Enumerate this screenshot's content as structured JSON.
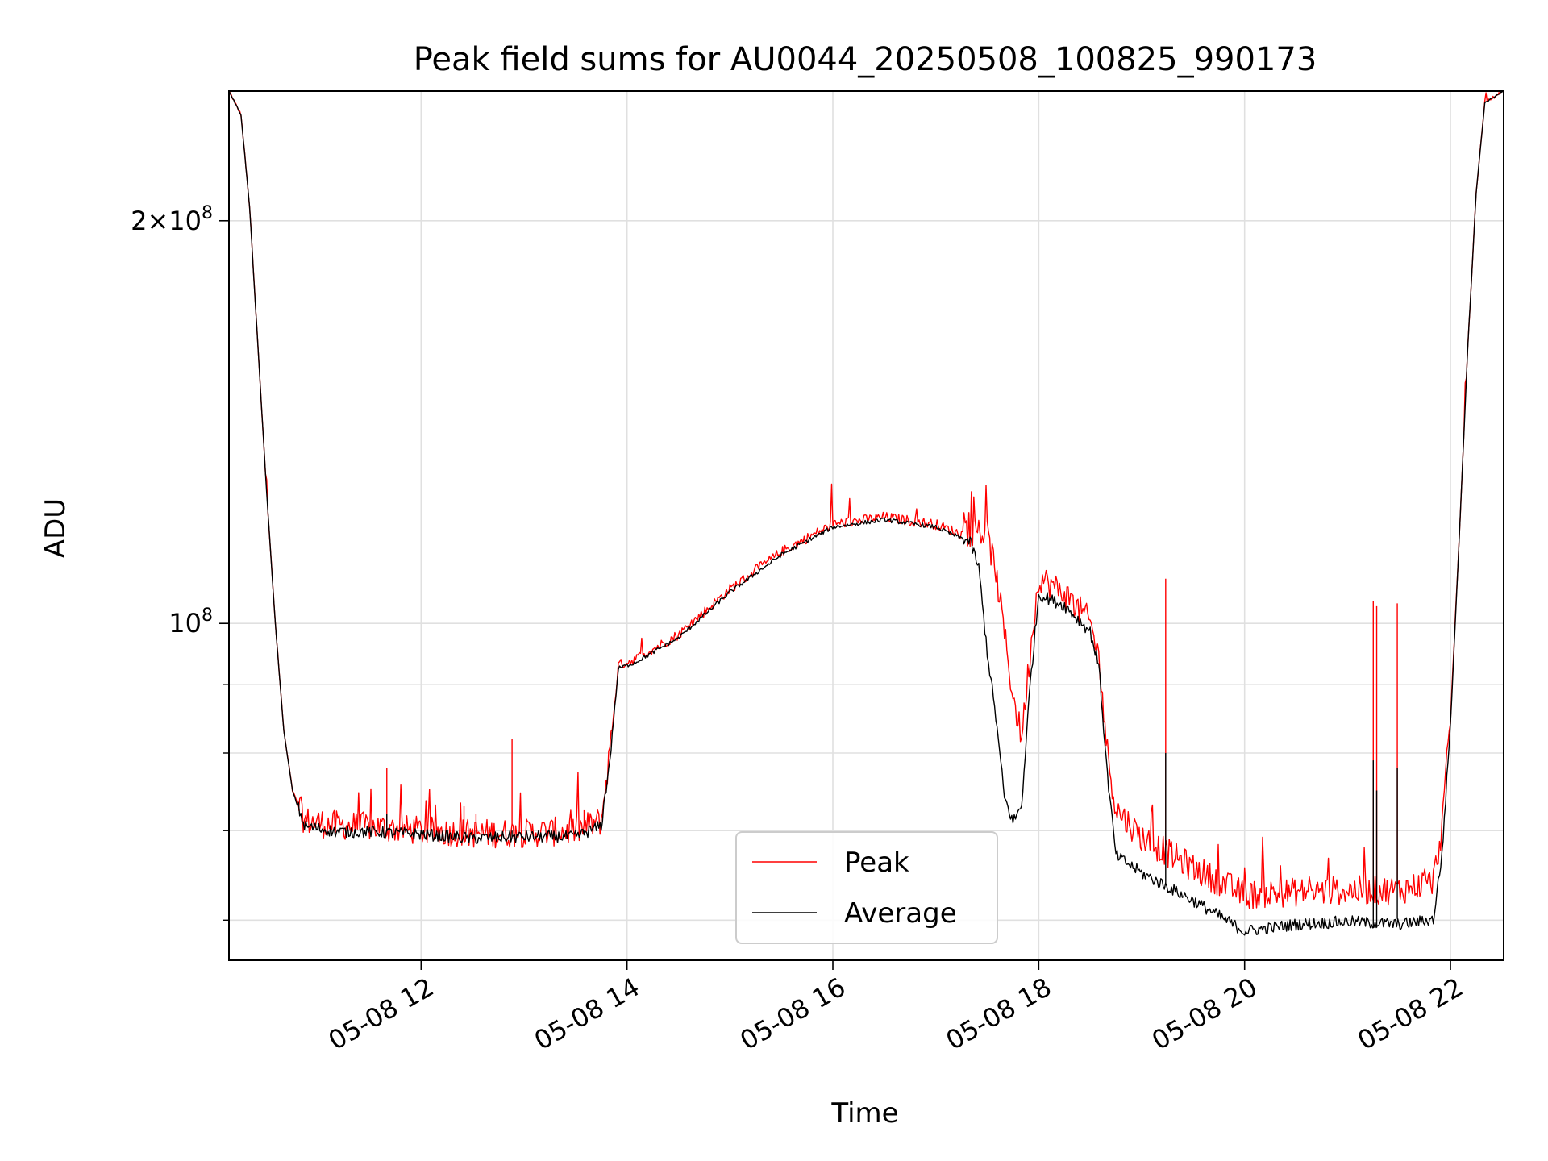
{
  "chart_data": {
    "type": "line",
    "title": "Peak field sums for AU0044_20250508_100825_990173",
    "xlabel": "Time",
    "ylabel": "ADU",
    "y_scale": "log",
    "grid": true,
    "legend_position": "lower center",
    "xlim": [
      "2025-05-08 10:08",
      "2025-05-08 22:31"
    ],
    "ylim": [
      56000000,
      250000000
    ],
    "x_ticks": [
      {
        "value": "2025-05-08 12:00",
        "label": "05-08 12"
      },
      {
        "value": "2025-05-08 14:00",
        "label": "05-08 14"
      },
      {
        "value": "2025-05-08 16:00",
        "label": "05-08 16"
      },
      {
        "value": "2025-05-08 18:00",
        "label": "05-08 18"
      },
      {
        "value": "2025-05-08 20:00",
        "label": "05-08 20"
      },
      {
        "value": "2025-05-08 22:00",
        "label": "05-08 22"
      }
    ],
    "y_major_ticks": [
      {
        "value": 100000000,
        "mantissa": "",
        "exponent": "8"
      },
      {
        "value": 200000000,
        "mantissa": "2",
        "exponent": "8"
      }
    ],
    "y_minor_ticks": [
      60000000,
      70000000,
      80000000,
      90000000
    ],
    "series": [
      {
        "name": "Peak",
        "color": "#ff0000",
        "noise": "high",
        "points": [
          [
            "2025-05-08 10:08",
            250000000
          ],
          [
            "2025-05-08 10:15",
            240000000
          ],
          [
            "2025-05-08 10:20",
            205000000
          ],
          [
            "2025-05-08 10:25",
            160000000
          ],
          [
            "2025-05-08 10:30",
            125000000
          ],
          [
            "2025-05-08 10:35",
            100000000
          ],
          [
            "2025-05-08 10:40",
            83000000
          ],
          [
            "2025-05-08 10:45",
            75000000
          ],
          [
            "2025-05-08 10:52",
            71000000
          ],
          [
            "2025-05-08 11:10",
            70500000
          ],
          [
            "2025-05-08 11:30",
            70300000
          ],
          [
            "2025-05-08 12:00",
            69800000
          ],
          [
            "2025-05-08 12:30",
            69500000
          ],
          [
            "2025-05-08 13:00",
            69500000
          ],
          [
            "2025-05-08 13:30",
            69800000
          ],
          [
            "2025-05-08 13:45",
            71000000
          ],
          [
            "2025-05-08 13:50",
            80000000
          ],
          [
            "2025-05-08 13:55",
            93000000
          ],
          [
            "2025-05-08 14:05",
            94000000
          ],
          [
            "2025-05-08 14:30",
            98000000
          ],
          [
            "2025-05-08 15:00",
            106000000
          ],
          [
            "2025-05-08 15:30",
            113000000
          ],
          [
            "2025-05-08 16:00",
            118500000
          ],
          [
            "2025-05-08 16:30",
            120000000
          ],
          [
            "2025-05-08 17:00",
            118500000
          ],
          [
            "2025-05-08 17:15",
            116500000
          ],
          [
            "2025-05-08 17:25",
            117000000
          ],
          [
            "2025-05-08 17:30",
            116000000
          ],
          [
            "2025-05-08 17:35",
            109000000
          ],
          [
            "2025-05-08 17:40",
            98000000
          ],
          [
            "2025-05-08 17:45",
            88000000
          ],
          [
            "2025-05-08 17:50",
            82000000
          ],
          [
            "2025-05-08 17:55",
            95000000
          ],
          [
            "2025-05-08 18:00",
            108000000
          ],
          [
            "2025-05-08 18:15",
            105000000
          ],
          [
            "2025-05-08 18:30",
            100000000
          ],
          [
            "2025-05-08 18:35",
            94000000
          ],
          [
            "2025-05-08 18:40",
            80000000
          ],
          [
            "2025-05-08 18:45",
            72500000
          ],
          [
            "2025-05-08 19:00",
            69000000
          ],
          [
            "2025-05-08 19:30",
            65500000
          ],
          [
            "2025-05-08 20:00",
            62500000
          ],
          [
            "2025-05-08 20:30",
            62800000
          ],
          [
            "2025-05-08 21:00",
            63000000
          ],
          [
            "2025-05-08 21:30",
            63000000
          ],
          [
            "2025-05-08 21:50",
            64000000
          ],
          [
            "2025-05-08 21:55",
            70000000
          ],
          [
            "2025-05-08 22:00",
            85000000
          ],
          [
            "2025-05-08 22:05",
            115000000
          ],
          [
            "2025-05-08 22:10",
            160000000
          ],
          [
            "2025-05-08 22:15",
            210000000
          ],
          [
            "2025-05-08 22:20",
            245000000
          ],
          [
            "2025-05-08 22:31",
            250000000
          ]
        ]
      },
      {
        "name": "Average",
        "color": "#000000",
        "noise": "low",
        "points": [
          [
            "2025-05-08 10:08",
            250000000
          ],
          [
            "2025-05-08 10:15",
            240000000
          ],
          [
            "2025-05-08 10:20",
            205000000
          ],
          [
            "2025-05-08 10:25",
            160000000
          ],
          [
            "2025-05-08 10:30",
            125000000
          ],
          [
            "2025-05-08 10:35",
            100000000
          ],
          [
            "2025-05-08 10:40",
            83000000
          ],
          [
            "2025-05-08 10:45",
            75000000
          ],
          [
            "2025-05-08 10:52",
            70500000
          ],
          [
            "2025-05-08 11:10",
            69800000
          ],
          [
            "2025-05-08 11:30",
            69800000
          ],
          [
            "2025-05-08 12:00",
            69500000
          ],
          [
            "2025-05-08 12:30",
            69000000
          ],
          [
            "2025-05-08 13:00",
            69200000
          ],
          [
            "2025-05-08 13:30",
            69200000
          ],
          [
            "2025-05-08 13:45",
            70500000
          ],
          [
            "2025-05-08 13:50",
            79000000
          ],
          [
            "2025-05-08 13:55",
            92500000
          ],
          [
            "2025-05-08 14:05",
            93500000
          ],
          [
            "2025-05-08 14:30",
            97500000
          ],
          [
            "2025-05-08 15:00",
            105500000
          ],
          [
            "2025-05-08 15:30",
            112500000
          ],
          [
            "2025-05-08 16:00",
            118000000
          ],
          [
            "2025-05-08 16:30",
            119500000
          ],
          [
            "2025-05-08 17:00",
            118000000
          ],
          [
            "2025-05-08 17:20",
            115000000
          ],
          [
            "2025-05-08 17:25",
            110000000
          ],
          [
            "2025-05-08 17:30",
            95000000
          ],
          [
            "2025-05-08 17:35",
            85000000
          ],
          [
            "2025-05-08 17:40",
            74000000
          ],
          [
            "2025-05-08 17:45",
            71000000
          ],
          [
            "2025-05-08 17:50",
            73000000
          ],
          [
            "2025-05-08 17:55",
            90000000
          ],
          [
            "2025-05-08 18:00",
            105000000
          ],
          [
            "2025-05-08 18:15",
            103000000
          ],
          [
            "2025-05-08 18:30",
            98500000
          ],
          [
            "2025-05-08 18:35",
            93000000
          ],
          [
            "2025-05-08 18:40",
            77000000
          ],
          [
            "2025-05-08 18:45",
            67000000
          ],
          [
            "2025-05-08 19:00",
            65000000
          ],
          [
            "2025-05-08 19:30",
            62000000
          ],
          [
            "2025-05-08 20:00",
            58800000
          ],
          [
            "2025-05-08 20:30",
            59500000
          ],
          [
            "2025-05-08 21:00",
            59800000
          ],
          [
            "2025-05-08 21:30",
            59500000
          ],
          [
            "2025-05-08 21:50",
            60000000
          ],
          [
            "2025-05-08 21:55",
            67000000
          ],
          [
            "2025-05-08 22:00",
            84000000
          ],
          [
            "2025-05-08 22:05",
            115000000
          ],
          [
            "2025-05-08 22:10",
            160000000
          ],
          [
            "2025-05-08 22:15",
            210000000
          ],
          [
            "2025-05-08 22:20",
            245000000
          ],
          [
            "2025-05-08 22:31",
            250000000
          ]
        ]
      }
    ],
    "spikes": [
      {
        "time": "2025-05-08 11:40",
        "peak": 78000000,
        "average": 72000000
      },
      {
        "time": "2025-05-08 12:25",
        "peak": 73000000,
        "average": 70000000
      },
      {
        "time": "2025-05-08 12:32",
        "peak": 72000000,
        "average": 70000000
      },
      {
        "time": "2025-05-08 12:53",
        "peak": 82000000,
        "average": 70000000
      },
      {
        "time": "2025-05-08 13:35",
        "peak": 72500000,
        "average": 70000000
      },
      {
        "time": "2025-05-08 19:14",
        "peak": 108000000,
        "average": 80000000
      },
      {
        "time": "2025-05-08 21:15",
        "peak": 104000000,
        "average": 79000000
      },
      {
        "time": "2025-05-08 21:17",
        "peak": 103000000,
        "average": 75000000
      },
      {
        "time": "2025-05-08 21:29",
        "peak": 103500000,
        "average": 78000000
      }
    ]
  }
}
